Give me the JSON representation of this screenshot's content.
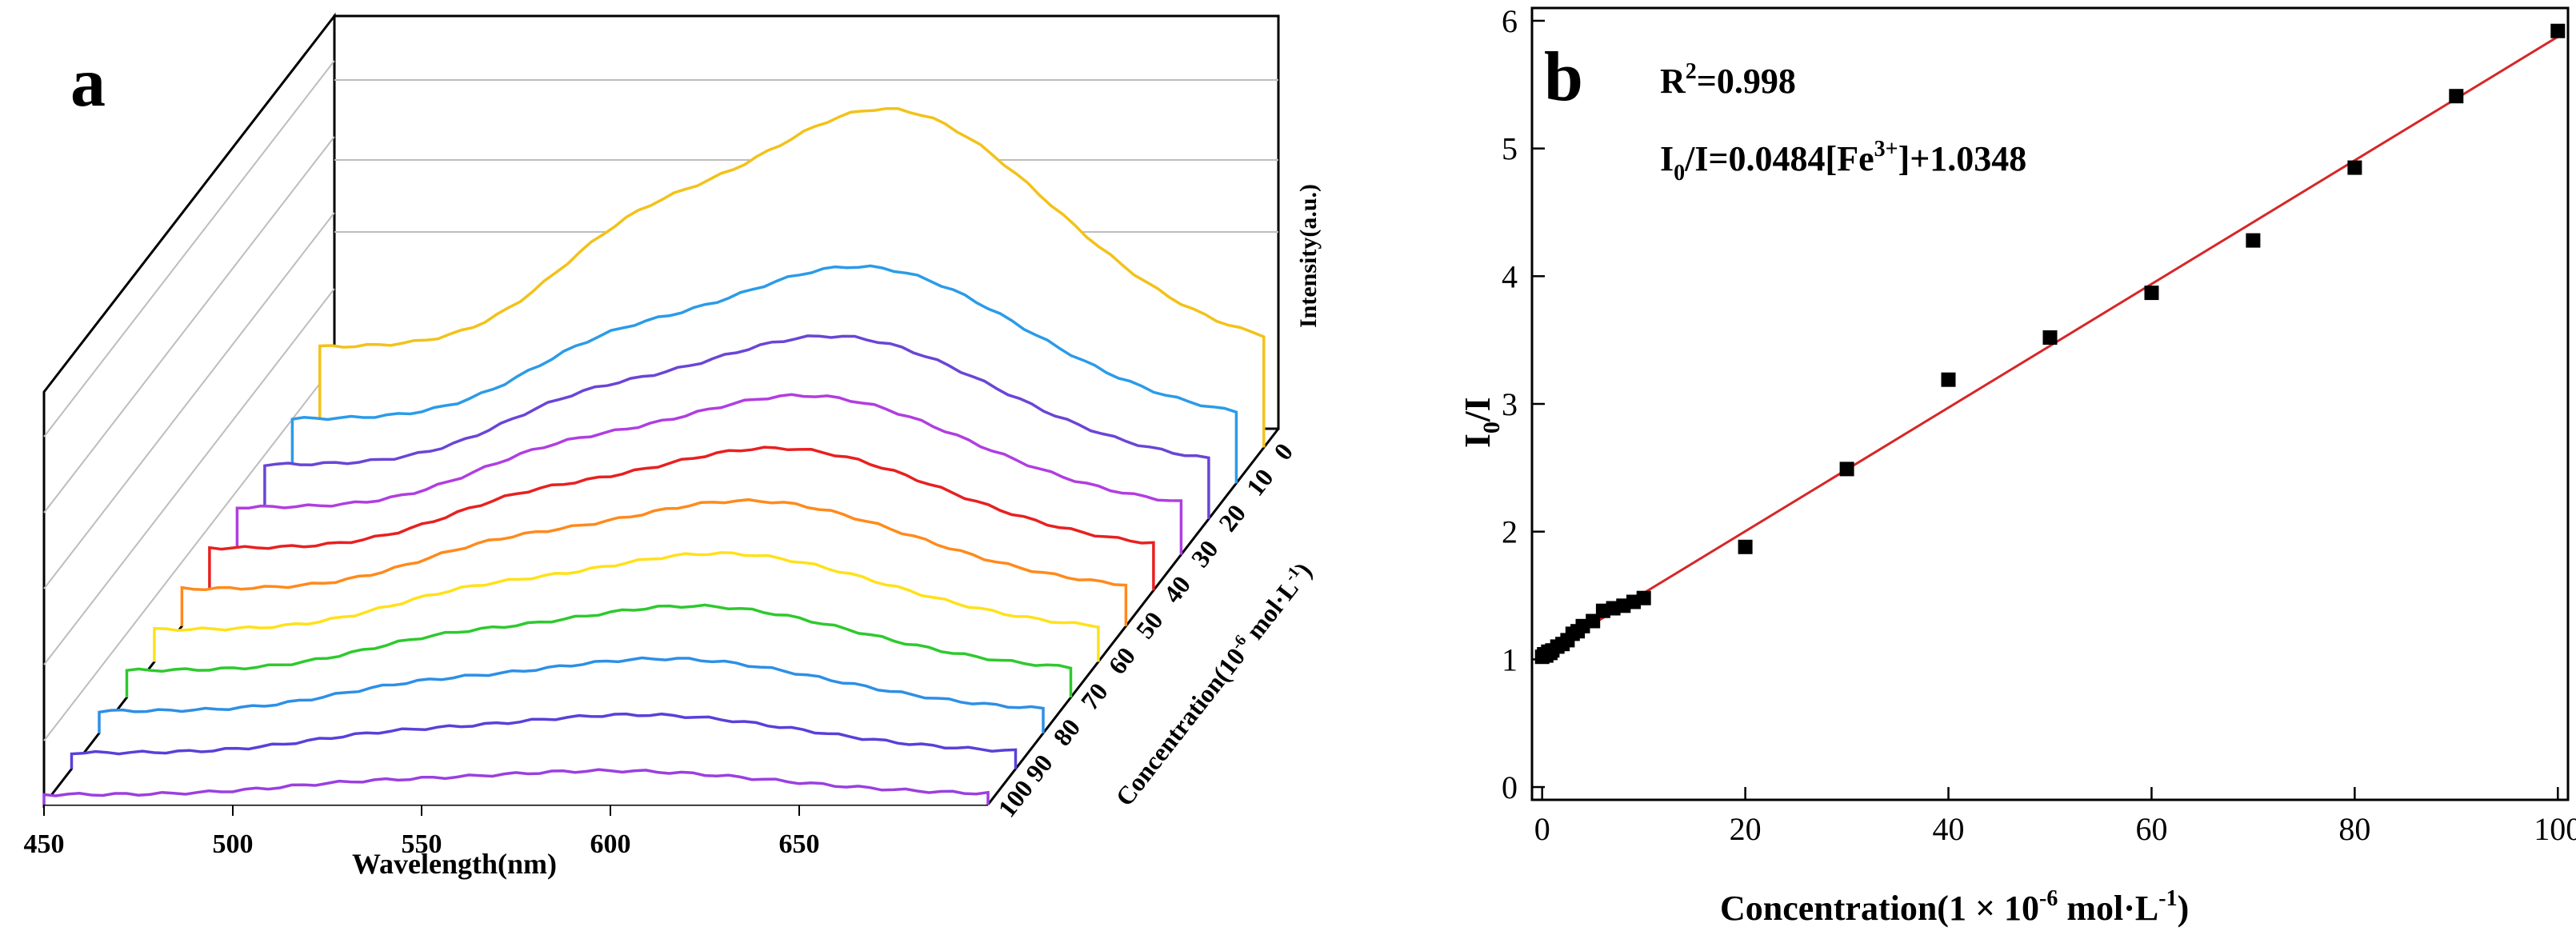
{
  "chart_data": [
    {
      "panel_label": "a",
      "type": "line",
      "title": "",
      "xlabel": "Wavelength(nm)",
      "ylabel": "Intensity(a.u.)",
      "zlabel_prefix": "Concentration(10",
      "zlabel_exponent": "-6",
      "zlabel_suffix": " mol·L",
      "zlabel_unit_exponent": "-1",
      "zlabel_close": ")",
      "x_ticks": [
        "450",
        "500",
        "550",
        "600",
        "650"
      ],
      "z_ticks": [
        "0",
        "10",
        "20",
        "30",
        "40",
        "50",
        "60",
        "70",
        "80",
        "90",
        "100"
      ],
      "xlim": [
        450,
        700
      ],
      "peak_wavelength": 600,
      "colors": [
        "#9b3fe0",
        "#5b3fd9",
        "#2d8fe6",
        "#2ec92e",
        "#ffe11a",
        "#ff8a1c",
        "#e82020",
        "#b03ee0",
        "#6a45d6",
        "#2b9be8",
        "#f2c21a"
      ],
      "series": [
        {
          "name": "100",
          "relative_peak": 0.1
        },
        {
          "name": "90",
          "relative_peak": 0.16
        },
        {
          "name": "80",
          "relative_peak": 0.22
        },
        {
          "name": "70",
          "relative_peak": 0.27
        },
        {
          "name": "60",
          "relative_peak": 0.32
        },
        {
          "name": "50",
          "relative_peak": 0.37
        },
        {
          "name": "40",
          "relative_peak": 0.42
        },
        {
          "name": "30",
          "relative_peak": 0.47
        },
        {
          "name": "20",
          "relative_peak": 0.54
        },
        {
          "name": "10",
          "relative_peak": 0.64
        },
        {
          "name": "0",
          "relative_peak": 1.0
        }
      ]
    },
    {
      "panel_label": "b",
      "type": "scatter",
      "title": "",
      "xlabel_prefix": "Concentration(1 × 10",
      "xlabel_exponent": "-6",
      "xlabel_suffix": " mol·L",
      "xlabel_unit_exponent": "-1",
      "xlabel_close": ")",
      "ylabel_main": "I",
      "ylabel_sub": "0",
      "ylabel_rest": "/I",
      "xlim": [
        -1,
        101
      ],
      "ylim": [
        -0.1,
        6.1
      ],
      "x_ticks": [
        0,
        20,
        40,
        60,
        80,
        100
      ],
      "y_ticks": [
        0,
        1,
        2,
        3,
        4,
        5,
        6
      ],
      "x": [
        0,
        0.2,
        0.4,
        0.6,
        0.8,
        1,
        1.5,
        2,
        2.5,
        3,
        3.5,
        4,
        5,
        6,
        7,
        8,
        9,
        10,
        20,
        30,
        40,
        50,
        60,
        70,
        80,
        90,
        100
      ],
      "y": [
        1.02,
        1.04,
        1.03,
        1.06,
        1.05,
        1.07,
        1.1,
        1.12,
        1.15,
        1.2,
        1.22,
        1.26,
        1.3,
        1.38,
        1.4,
        1.42,
        1.45,
        1.48,
        1.88,
        2.49,
        3.19,
        3.52,
        3.87,
        4.28,
        4.85,
        5.41,
        5.92
      ],
      "fit": {
        "slope": 0.0484,
        "intercept": 1.0348,
        "x_range": [
          0,
          100
        ],
        "color": "#d62728"
      },
      "point_color": "#000000",
      "r2_label": "R",
      "r2_exp": "2",
      "r2_value": "=0.998",
      "eq_i": "I",
      "eq_sub": "0",
      "eq_mid": "/I=0.0484[Fe",
      "eq_sup": "3+",
      "eq_end": "]+1.0348"
    }
  ]
}
